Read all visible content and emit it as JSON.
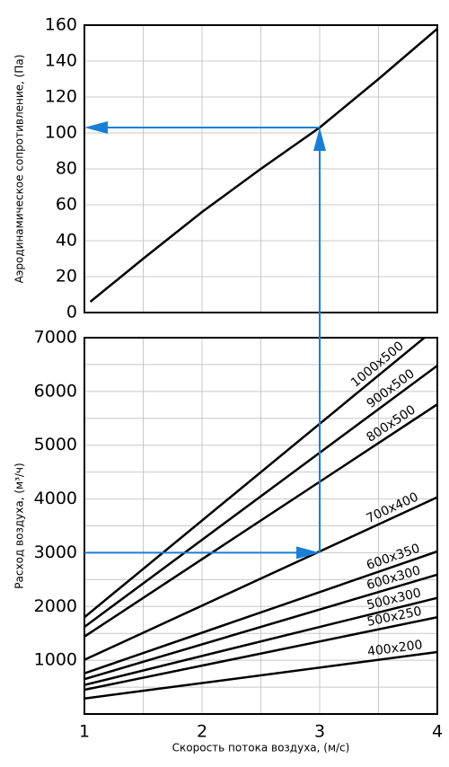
{
  "chart_data": [
    {
      "type": "line",
      "ylabel": "Аэродинамическое сопротивление, (Па)",
      "xlim": [
        1,
        4
      ],
      "ylim": [
        0,
        160
      ],
      "yticks": [
        0,
        20,
        40,
        60,
        80,
        100,
        120,
        140,
        160
      ],
      "xgrid": [
        1,
        1.5,
        2,
        2.5,
        3,
        3.5,
        4
      ],
      "grid": true,
      "series": [
        {
          "color": "#000000",
          "x": [
            1.05,
            1.5,
            2,
            2.5,
            3,
            3.5,
            4
          ],
          "values": [
            6,
            30,
            56,
            80,
            103,
            130,
            158
          ]
        }
      ],
      "guide": {
        "x": 3,
        "y": 103,
        "color": "#1a7fd4"
      }
    },
    {
      "type": "line",
      "xlabel": "Скорость потока воздуха, (м/с)",
      "ylabel": "Расход воздуха, (м³/ч)",
      "xlim": [
        1,
        4
      ],
      "ylim": [
        0,
        7000
      ],
      "xticks": [
        1,
        2,
        3,
        4
      ],
      "yticks": [
        1000,
        2000,
        3000,
        4000,
        5000,
        6000,
        7000
      ],
      "xgrid": [
        1,
        1.5,
        2,
        2.5,
        3,
        3.5,
        4
      ],
      "ygrid": [
        500,
        1000,
        1500,
        2000,
        2500,
        3000,
        3500,
        4000,
        4500,
        5000,
        5500,
        6000,
        6500,
        7000
      ],
      "grid": true,
      "series": [
        {
          "name": "1000x500",
          "color": "#000000",
          "x": [
            1,
            3.89
          ],
          "values": [
            1800,
            7000
          ]
        },
        {
          "name": "900x500",
          "color": "#000000",
          "x": [
            1,
            4
          ],
          "values": [
            1620,
            6480
          ]
        },
        {
          "name": "800x500",
          "color": "#000000",
          "x": [
            1,
            4
          ],
          "values": [
            1440,
            5760
          ]
        },
        {
          "name": "700x400",
          "color": "#000000",
          "x": [
            1,
            4
          ],
          "values": [
            1008,
            4032
          ]
        },
        {
          "name": "600x350",
          "color": "#000000",
          "x": [
            1,
            4
          ],
          "values": [
            756,
            3024
          ]
        },
        {
          "name": "600x300",
          "color": "#000000",
          "x": [
            1,
            4
          ],
          "values": [
            648,
            2592
          ]
        },
        {
          "name": "500x300",
          "color": "#000000",
          "x": [
            1,
            4
          ],
          "values": [
            540,
            2160
          ]
        },
        {
          "name": "500x250",
          "color": "#000000",
          "x": [
            1,
            4
          ],
          "values": [
            450,
            1800
          ]
        },
        {
          "name": "400x200",
          "color": "#000000",
          "x": [
            1,
            4
          ],
          "values": [
            288,
            1152
          ]
        }
      ],
      "guide": {
        "x": 3,
        "y": 3000,
        "color": "#1a7fd4"
      }
    }
  ]
}
